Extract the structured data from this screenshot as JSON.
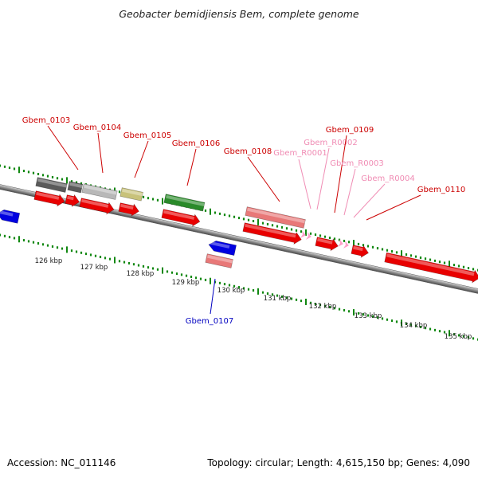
{
  "title": "Geobacter bemidjiensis Bem, complete genome",
  "footer": {
    "accession": "Accession: NC_011146",
    "topology": "Topology: circular; Length: 4,615,150 bp; Genes: 4,090"
  },
  "axis": {
    "ticks": [
      "126 kbp",
      "127 kbp",
      "128 kbp",
      "129 kbp",
      "130 kbp",
      "131 kbp",
      "132 kbp",
      "133 kbp",
      "134 kbp",
      "135 kbp"
    ]
  },
  "colors": {
    "cds": "#e80000",
    "gene_strand_plus": "#e87878",
    "rna": "#ff9ec8",
    "other_gene_label": "#cc0000",
    "rna_label": "#f08cb4",
    "minus_strand_label": "#0000c0",
    "blue_feature": "#0000e0",
    "green_feature": "#2a8a2a",
    "tick": "#118811",
    "dark_gray": "#5a5a5a",
    "light_gray": "#b8b8b8",
    "khaki": "#c8c27a"
  },
  "gene_labels": [
    {
      "id": "Gbem_0103",
      "kind": "gene"
    },
    {
      "id": "Gbem_0104",
      "kind": "gene"
    },
    {
      "id": "Gbem_0105",
      "kind": "gene"
    },
    {
      "id": "Gbem_0106",
      "kind": "gene"
    },
    {
      "id": "Gbem_0108",
      "kind": "gene"
    },
    {
      "id": "Gbem_R0001",
      "kind": "rna"
    },
    {
      "id": "Gbem_R0002",
      "kind": "rna"
    },
    {
      "id": "Gbem_0109",
      "kind": "gene"
    },
    {
      "id": "Gbem_R0003",
      "kind": "rna"
    },
    {
      "id": "Gbem_R0004",
      "kind": "rna"
    },
    {
      "id": "Gbem_0110",
      "kind": "gene"
    },
    {
      "id": "Gbem_0107",
      "kind": "minus"
    }
  ]
}
